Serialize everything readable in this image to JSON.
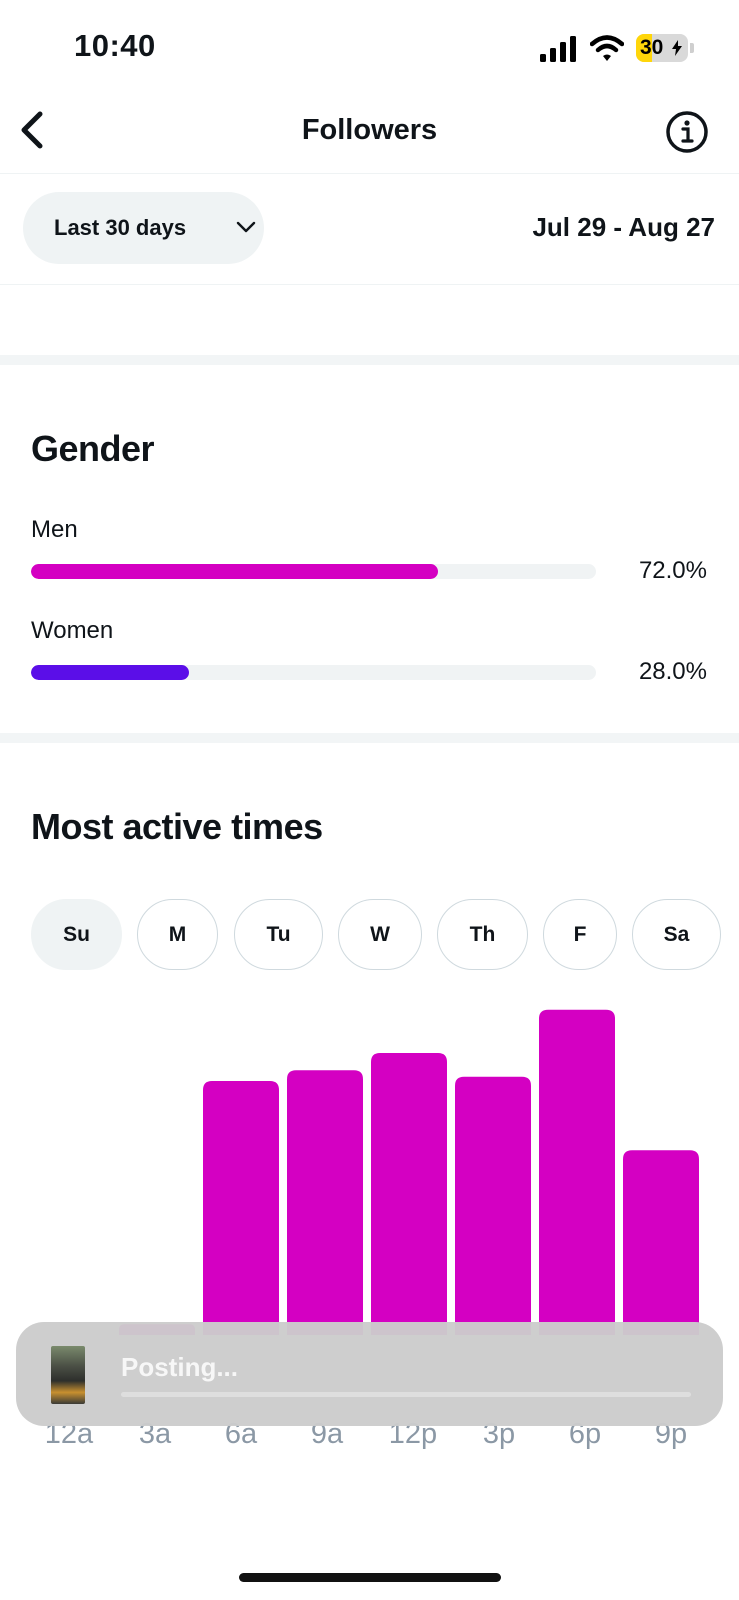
{
  "status_bar": {
    "time": "10:40",
    "battery_level": "30",
    "battery_fraction": 0.3,
    "battery_color": "#ffd60a",
    "icons": [
      "signal-icon",
      "wifi-icon",
      "battery-icon"
    ]
  },
  "header": {
    "title": "Followers",
    "back_icon": "chevron-left-icon",
    "info_icon": "info-icon"
  },
  "range": {
    "selected": "Last 30 days",
    "dates": "Jul 29 - Aug 27"
  },
  "gender": {
    "title": "Gender",
    "items": [
      {
        "label": "Men",
        "value": "72.0%",
        "fraction": 0.72,
        "color": "#d400c2"
      },
      {
        "label": "Women",
        "value": "28.0%",
        "fraction": 0.28,
        "color": "#5b0ee8"
      }
    ]
  },
  "active_times": {
    "title": "Most active times",
    "days": [
      "Su",
      "M",
      "Tu",
      "W",
      "Th",
      "F",
      "Sa"
    ],
    "selected_day": "Su"
  },
  "chart_data": {
    "type": "bar",
    "categories": [
      "12a",
      "3a",
      "6a",
      "9a",
      "12p",
      "3p",
      "6p",
      "9p"
    ],
    "values": [
      0,
      10,
      235,
      245,
      261,
      239,
      301,
      171
    ],
    "color": "#d400c2",
    "ylim": [
      0,
      310
    ],
    "grid": false
  },
  "toast": {
    "text": "Posting..."
  }
}
